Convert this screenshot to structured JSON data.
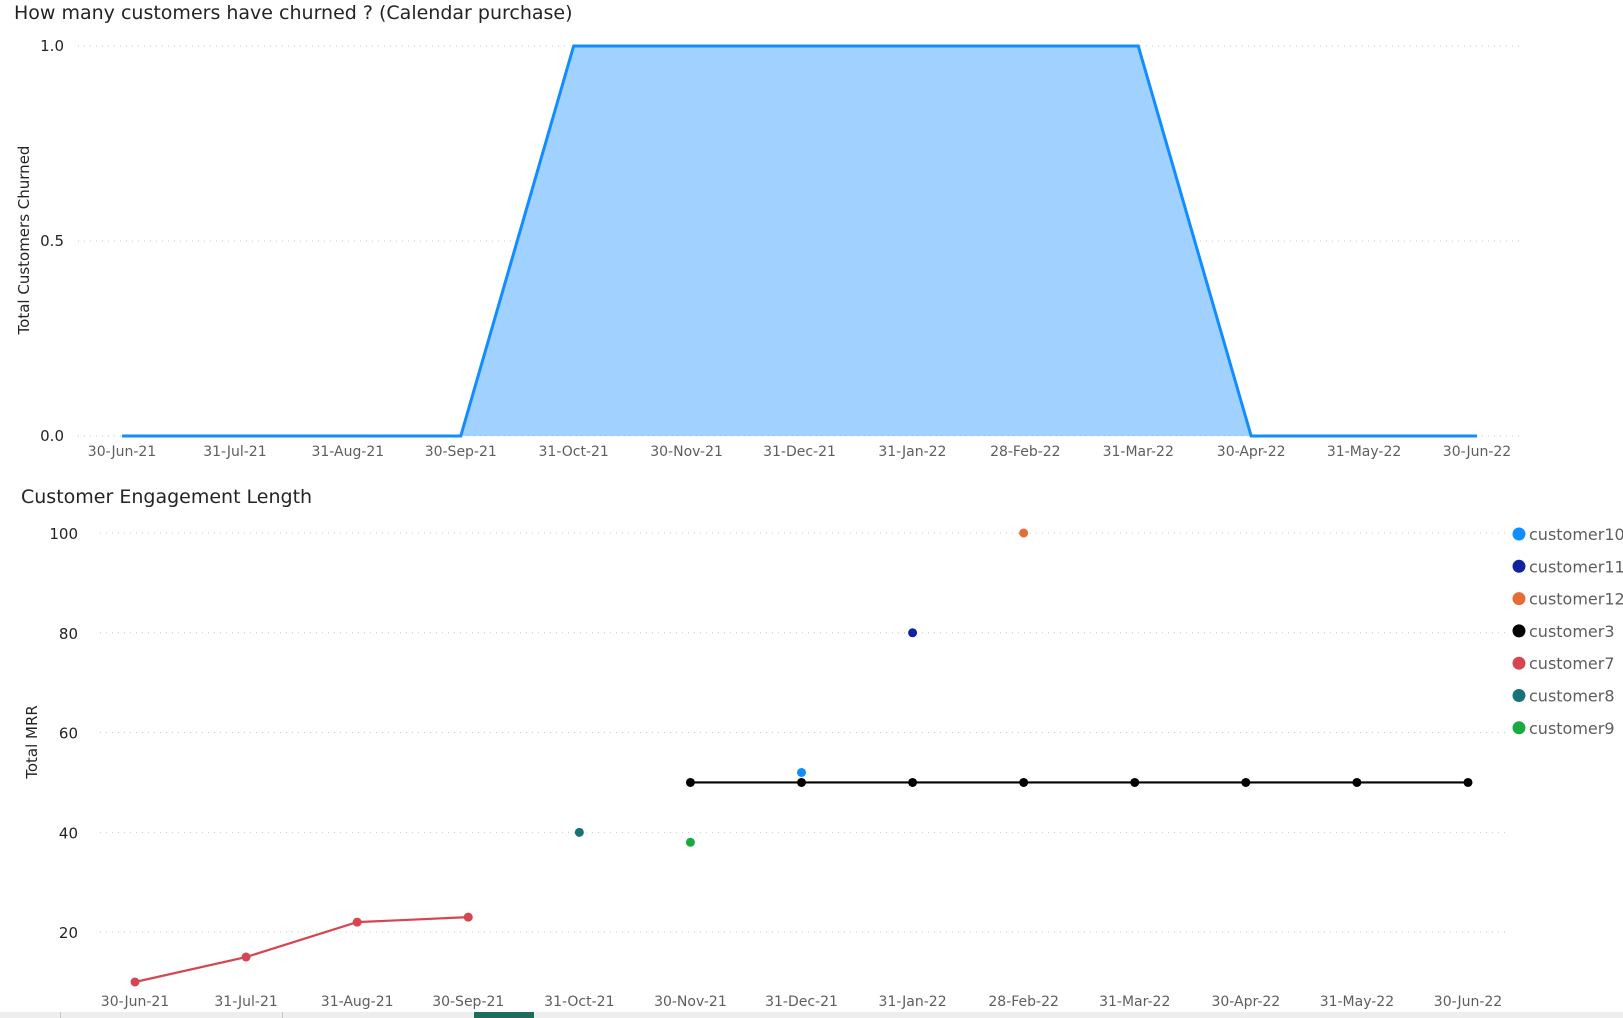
{
  "chart_data": [
    {
      "type": "area",
      "title": "How many customers have churned ? (Calendar purchase)",
      "xlabel": "",
      "ylabel": "Total Customers Churned",
      "categories": [
        "30-Jun-21",
        "31-Jul-21",
        "31-Aug-21",
        "30-Sep-21",
        "31-Oct-21",
        "30-Nov-21",
        "31-Dec-21",
        "31-Jan-22",
        "28-Feb-22",
        "31-Mar-22",
        "30-Apr-22",
        "31-May-22",
        "30-Jun-22"
      ],
      "values": [
        0,
        0,
        0,
        0,
        1,
        1,
        1,
        1,
        1,
        1,
        0,
        0,
        0
      ],
      "yticks": [
        "0.0",
        "0.5",
        "1.0"
      ],
      "ylim": [
        0,
        1
      ],
      "grid": true,
      "color": "#118DFF",
      "fill": "#A0D1FF"
    },
    {
      "type": "line",
      "title": "Customer Engagement Length",
      "xlabel": "",
      "ylabel": "Total MRR",
      "categories": [
        "30-Jun-21",
        "31-Jul-21",
        "31-Aug-21",
        "30-Sep-21",
        "31-Oct-21",
        "30-Nov-21",
        "31-Dec-21",
        "31-Jan-22",
        "28-Feb-22",
        "31-Mar-22",
        "30-Apr-22",
        "31-May-22",
        "30-Jun-22"
      ],
      "yticks": [
        "20",
        "40",
        "60",
        "80",
        "100"
      ],
      "ylim": [
        10,
        100
      ],
      "grid": true,
      "legend_position": "right",
      "series": [
        {
          "name": "customer10",
          "color": "#118DFF",
          "values": [
            null,
            null,
            null,
            null,
            null,
            null,
            52,
            null,
            null,
            null,
            null,
            null,
            null
          ]
        },
        {
          "name": "customer11",
          "color": "#12239E",
          "values": [
            null,
            null,
            null,
            null,
            null,
            null,
            null,
            80,
            null,
            null,
            null,
            null,
            null
          ]
        },
        {
          "name": "customer12",
          "color": "#E66C37",
          "values": [
            null,
            null,
            null,
            null,
            null,
            null,
            null,
            null,
            100,
            null,
            null,
            null,
            null
          ]
        },
        {
          "name": "customer3",
          "color": "#000000",
          "values": [
            null,
            null,
            null,
            null,
            null,
            50,
            50,
            50,
            50,
            50,
            50,
            50,
            50
          ]
        },
        {
          "name": "customer7",
          "color": "#D64550",
          "values": [
            10,
            15,
            22,
            23,
            null,
            null,
            null,
            null,
            null,
            null,
            null,
            null,
            null
          ]
        },
        {
          "name": "customer8",
          "color": "#197278",
          "values": [
            null,
            null,
            null,
            null,
            40,
            null,
            null,
            null,
            null,
            null,
            null,
            null,
            null
          ]
        },
        {
          "name": "customer9",
          "color": "#1AAB40",
          "values": [
            null,
            null,
            null,
            null,
            null,
            38,
            null,
            null,
            null,
            null,
            null,
            null,
            null
          ]
        }
      ]
    }
  ]
}
